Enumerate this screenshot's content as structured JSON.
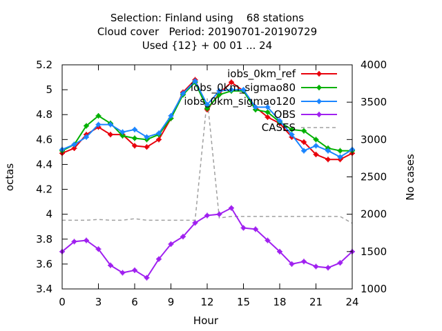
{
  "chart_data": {
    "type": "line",
    "title_lines": [
      "Selection: Finland using    68 stations",
      "Cloud cover   Period: 20190701-20190729",
      "Used {12} + 00 01 ... 24"
    ],
    "xlabel": "Hour",
    "ylabel": "octas",
    "y2label": "No cases",
    "xlim": [
      0,
      24
    ],
    "ylim": [
      3.4,
      5.2
    ],
    "y2lim": [
      1000,
      4000
    ],
    "xticks": [
      0,
      3,
      6,
      9,
      12,
      15,
      18,
      21,
      24
    ],
    "yticks": [
      3.4,
      3.6,
      3.8,
      4,
      4.2,
      4.4,
      4.6,
      4.8,
      5,
      5.2
    ],
    "y2ticks": [
      1000,
      1500,
      2000,
      2500,
      3000,
      3500,
      4000
    ],
    "ytick_labels": [
      "3.4",
      "3.6",
      "3.8",
      "4",
      "4.2",
      "4.4",
      "4.6",
      "4.8",
      "5",
      "5.2"
    ],
    "grid": false,
    "legend_position": "top-right",
    "x": [
      0,
      1,
      2,
      3,
      4,
      5,
      6,
      7,
      8,
      9,
      10,
      11,
      12,
      13,
      14,
      15,
      16,
      17,
      18,
      19,
      20,
      21,
      22,
      23,
      24
    ],
    "series": [
      {
        "name": "iobs_0km_ref",
        "color": "#e8000b",
        "marker": "plus-star",
        "values": [
          4.49,
          4.53,
          4.64,
          4.7,
          4.64,
          4.64,
          4.55,
          4.54,
          4.6,
          4.77,
          4.98,
          5.08,
          4.84,
          4.97,
          5.06,
          4.99,
          4.86,
          4.78,
          4.73,
          4.62,
          4.58,
          4.48,
          4.44,
          4.44,
          4.49
        ]
      },
      {
        "name": "iobs_0km_sigmao80",
        "color": "#00b000",
        "marker": "plus-star",
        "values": [
          4.51,
          4.56,
          4.71,
          4.79,
          4.73,
          4.63,
          4.61,
          4.6,
          4.64,
          4.77,
          4.96,
          5.06,
          4.85,
          4.96,
          4.99,
          4.99,
          4.84,
          4.82,
          4.74,
          4.68,
          4.67,
          4.6,
          4.53,
          4.51,
          4.51
        ]
      },
      {
        "name": "iobs_0km_sigmao120",
        "color": "#1a85ff",
        "marker": "plus-star",
        "values": [
          4.52,
          4.56,
          4.62,
          4.72,
          4.72,
          4.66,
          4.68,
          4.62,
          4.65,
          4.79,
          4.97,
          5.07,
          4.88,
          4.99,
          5.0,
          5.0,
          4.86,
          4.86,
          4.75,
          4.64,
          4.51,
          4.55,
          4.51,
          4.46,
          4.52
        ]
      },
      {
        "name": "OBS",
        "color": "#a020f0",
        "marker": "plus-star",
        "values": [
          3.7,
          3.78,
          3.79,
          3.72,
          3.59,
          3.53,
          3.55,
          3.49,
          3.64,
          3.76,
          3.82,
          3.93,
          3.99,
          4.0,
          4.05,
          3.89,
          3.88,
          3.79,
          3.7,
          3.6,
          3.62,
          3.58,
          3.57,
          3.61,
          3.7
        ]
      },
      {
        "name": "CASES",
        "color": "#a0a0a0",
        "axis": "y2",
        "dashed": true,
        "values": [
          1920,
          1920,
          1920,
          1930,
          1920,
          1920,
          1940,
          1920,
          1920,
          1920,
          1920,
          1920,
          3550,
          1950,
          1970,
          1970,
          1970,
          1970,
          1970,
          1970,
          1970,
          1970,
          1970,
          1970,
          1880
        ]
      }
    ]
  }
}
